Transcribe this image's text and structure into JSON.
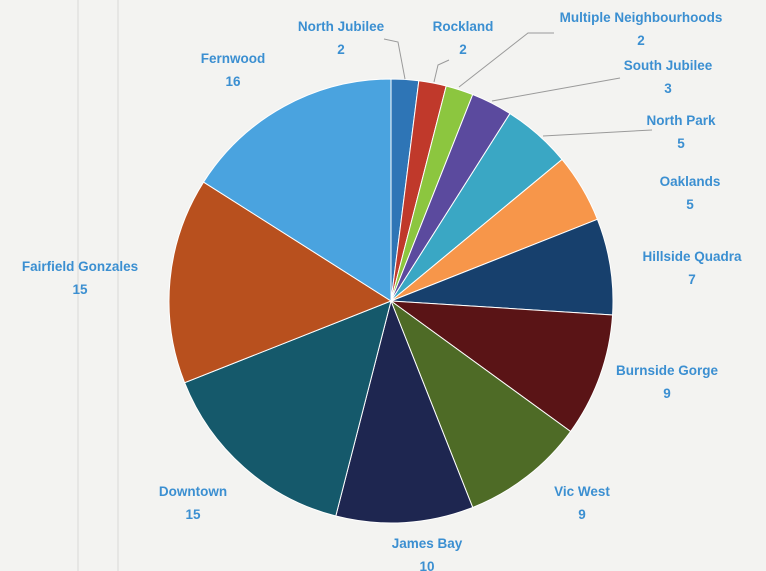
{
  "chart_data": {
    "type": "pie",
    "title": "",
    "slices": [
      {
        "label": "North Jubilee",
        "value": 2,
        "color": "#2e75b6"
      },
      {
        "label": "Rockland",
        "value": 2,
        "color": "#c0392b"
      },
      {
        "label": "Multiple Neighbourhoods",
        "value": 2,
        "color": "#8cc63f"
      },
      {
        "label": "South Jubilee",
        "value": 3,
        "color": "#5b4a9e"
      },
      {
        "label": "North Park",
        "value": 5,
        "color": "#3aa7c4"
      },
      {
        "label": "Oaklands",
        "value": 5,
        "color": "#f7964a"
      },
      {
        "label": "Hillside Quadra",
        "value": 7,
        "color": "#17406d"
      },
      {
        "label": "Burnside Gorge",
        "value": 9,
        "color": "#5a1416"
      },
      {
        "label": "Vic West",
        "value": 9,
        "color": "#4e6b26"
      },
      {
        "label": "James Bay",
        "value": 10,
        "color": "#1e2650"
      },
      {
        "label": "Downtown",
        "value": 15,
        "color": "#15596b"
      },
      {
        "label": "Fairfield Gonzales",
        "value": 15,
        "color": "#b8501e"
      },
      {
        "label": "Fernwood",
        "value": 16,
        "color": "#4aa3df"
      }
    ],
    "legend": "none",
    "data_labels": "category name and value, outside end"
  }
}
